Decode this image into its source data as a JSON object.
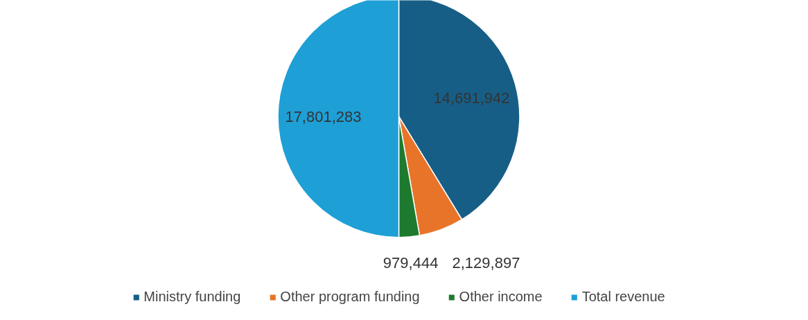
{
  "chart_data": {
    "type": "pie",
    "categories": [
      "Ministry funding",
      "Other program funding",
      "Other income",
      "Total revenue"
    ],
    "values": [
      14691942,
      2129897,
      979444,
      17801283
    ],
    "colors": [
      "#175e86",
      "#e8742a",
      "#1e7a2e",
      "#1e9fd6"
    ],
    "value_labels": [
      "14,691,942",
      "2,129,897",
      "979,444",
      "17,801,283"
    ],
    "legend": "bottom"
  }
}
